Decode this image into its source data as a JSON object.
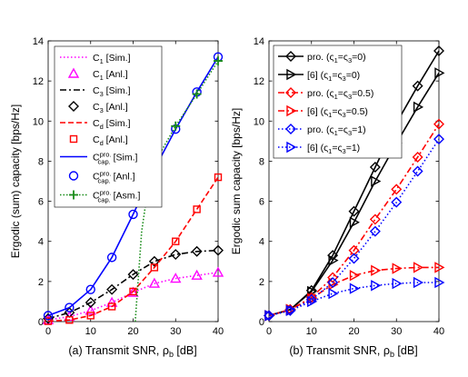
{
  "chart_data": [
    {
      "type": "line",
      "caption": "(a) Transmit SNR, ρ",
      "caption_sub": "b",
      "caption_unit": " [dB]",
      "ylabel": "Ergodic (sum) capacity [bps/Hz]",
      "xlim": [
        0,
        40
      ],
      "ylim": [
        0,
        14
      ],
      "xticks": [
        "0",
        "10",
        "20",
        "30",
        "40"
      ],
      "yticks": [
        "0",
        "2",
        "4",
        "6",
        "8",
        "10",
        "12",
        "14"
      ],
      "grid": false,
      "legend_position": "top-left",
      "series": [
        {
          "label": "C",
          "sub": "1",
          "sup": "",
          "tag": " [Sim.]",
          "color": "#ff00ff",
          "dash": "1.5,2.5",
          "marker": "none",
          "x": [
            0,
            5,
            10,
            15,
            20,
            25,
            30,
            35,
            40
          ],
          "y": [
            0.08,
            0.25,
            0.55,
            0.95,
            1.45,
            1.9,
            2.15,
            2.3,
            2.45
          ]
        },
        {
          "label": "C",
          "sub": "1",
          "sup": "",
          "tag": " [Anl.]",
          "color": "#ff00ff",
          "dash": "none",
          "marker": "triangle",
          "line": false,
          "x": [
            0,
            5,
            10,
            15,
            20,
            25,
            30,
            35,
            40
          ],
          "y": [
            0.08,
            0.25,
            0.55,
            0.95,
            1.45,
            1.9,
            2.15,
            2.3,
            2.45
          ]
        },
        {
          "label": "C",
          "sub": "3",
          "sup": "",
          "tag": " [Sim.]",
          "color": "#000000",
          "dash": "7,3,2,3",
          "marker": "none",
          "x": [
            0,
            5,
            10,
            15,
            20,
            25,
            30,
            35,
            40
          ],
          "y": [
            0.15,
            0.45,
            0.95,
            1.6,
            2.35,
            3.0,
            3.35,
            3.5,
            3.55
          ]
        },
        {
          "label": "C",
          "sub": "3",
          "sup": "",
          "tag": " [Anl.]",
          "color": "#000000",
          "dash": "none",
          "marker": "diamond",
          "line": false,
          "x": [
            0,
            5,
            10,
            15,
            20,
            25,
            30,
            35,
            40
          ],
          "y": [
            0.15,
            0.45,
            0.95,
            1.6,
            2.35,
            3.0,
            3.35,
            3.5,
            3.55
          ]
        },
        {
          "label": "C",
          "sub": "d",
          "sup": "",
          "tag": " [Sim.]",
          "color": "#ff0000",
          "dash": "6,3",
          "marker": "none",
          "x": [
            0,
            5,
            10,
            15,
            20,
            25,
            30,
            35,
            40
          ],
          "y": [
            0.02,
            0.08,
            0.3,
            0.75,
            1.5,
            2.7,
            4.0,
            5.6,
            7.2
          ]
        },
        {
          "label": "C",
          "sub": "d",
          "sup": "",
          "tag": " [Anl.]",
          "color": "#ff0000",
          "dash": "none",
          "marker": "square",
          "line": false,
          "x": [
            0,
            5,
            10,
            15,
            20,
            25,
            30,
            35,
            40
          ],
          "y": [
            0.02,
            0.08,
            0.3,
            0.75,
            1.5,
            2.7,
            4.0,
            5.6,
            7.2
          ]
        },
        {
          "label": "C",
          "sub": "cap.",
          "sup": "pro.",
          "tag": " [Sim.]",
          "color": "#0000ff",
          "dash": "none",
          "marker": "none",
          "x": [
            0,
            5,
            10,
            15,
            20,
            25,
            30,
            35,
            40
          ],
          "y": [
            0.3,
            0.7,
            1.6,
            3.2,
            5.35,
            7.6,
            9.6,
            11.45,
            13.2
          ]
        },
        {
          "label": "C",
          "sub": "cap.",
          "sup": "pro.",
          "tag": " [Anl.]",
          "color": "#0000ff",
          "dash": "none",
          "marker": "circle",
          "line": false,
          "x": [
            0,
            5,
            10,
            15,
            20,
            25,
            30,
            35,
            40
          ],
          "y": [
            0.3,
            0.7,
            1.6,
            3.2,
            5.35,
            7.6,
            9.6,
            11.45,
            13.2
          ]
        },
        {
          "label": "C",
          "sub": "cap.",
          "sup": "pro.",
          "tag": " [Asm.]",
          "color": "#1a8c1a",
          "dash": "1.5,2",
          "marker": "plus",
          "x": [
            20.5,
            22,
            24,
            25,
            30,
            35,
            40
          ],
          "y": [
            0,
            4.5,
            7.4,
            7.9,
            9.75,
            11.35,
            13.0
          ],
          "marker_x": [
            25,
            30,
            35,
            40
          ],
          "marker_y": [
            7.9,
            9.75,
            11.35,
            13.0
          ]
        }
      ]
    },
    {
      "type": "line",
      "caption": "(b) Transmit SNR, ρ",
      "caption_sub": "b",
      "caption_unit": " [dB]",
      "ylabel": "Ergodic sum capacity [bps/Hz]",
      "xlim": [
        0,
        40
      ],
      "ylim": [
        0,
        14
      ],
      "xticks": [
        "0",
        "10",
        "20",
        "30",
        "40"
      ],
      "yticks": [
        "0",
        "2",
        "4",
        "6",
        "8",
        "10",
        "12",
        "14"
      ],
      "grid": false,
      "legend_position": "top-left",
      "series": [
        {
          "prefix": "pro. (ς",
          "mid": "=ς",
          "suffix": "=0)",
          "s1": "1",
          "s3": "3",
          "color": "#000000",
          "dash": "none",
          "marker": "diamond",
          "x": [
            0,
            5,
            10,
            15,
            20,
            25,
            30,
            35,
            40
          ],
          "y": [
            0.3,
            0.6,
            1.55,
            3.3,
            5.5,
            7.7,
            9.9,
            11.75,
            13.5
          ]
        },
        {
          "prefix": "[6] (ς",
          "mid": "=ς",
          "suffix": "=0)",
          "s1": "1",
          "s3": "3",
          "color": "#000000",
          "dash": "none",
          "marker": "triangle-right",
          "x": [
            0,
            5,
            10,
            15,
            20,
            25,
            30,
            35,
            40
          ],
          "y": [
            0.3,
            0.6,
            1.5,
            3.05,
            4.95,
            7.0,
            8.9,
            10.7,
            12.4
          ]
        },
        {
          "prefix": "pro. (ς",
          "mid": "=ς",
          "suffix": "=0.5)",
          "s1": "1",
          "s3": "3",
          "color": "#ff0000",
          "dash": "7,3,2,3",
          "marker": "diamond",
          "x": [
            0,
            5,
            10,
            15,
            20,
            25,
            30,
            35,
            40
          ],
          "y": [
            0.3,
            0.6,
            1.2,
            2.2,
            3.55,
            5.1,
            6.6,
            8.2,
            9.85
          ]
        },
        {
          "prefix": "[6] (ς",
          "mid": "=ς",
          "suffix": "=0.5)",
          "s1": "1",
          "s3": "3",
          "color": "#ff0000",
          "dash": "7,3,2,3",
          "marker": "triangle-right",
          "x": [
            0,
            5,
            10,
            15,
            20,
            25,
            30,
            35,
            40
          ],
          "y": [
            0.3,
            0.6,
            1.15,
            1.85,
            2.3,
            2.55,
            2.65,
            2.7,
            2.7
          ]
        },
        {
          "prefix": "pro. (ς",
          "mid": "=ς",
          "suffix": "=1)",
          "s1": "1",
          "s3": "3",
          "color": "#0000ff",
          "dash": "1.5,2.5",
          "marker": "diamond",
          "x": [
            0,
            5,
            10,
            15,
            20,
            25,
            30,
            35,
            40
          ],
          "y": [
            0.3,
            0.55,
            1.1,
            1.95,
            3.15,
            4.5,
            5.95,
            7.5,
            9.1
          ]
        },
        {
          "prefix": "[6] (ς",
          "mid": "=ς",
          "suffix": "=1)",
          "s1": "1",
          "s3": "3",
          "color": "#0000ff",
          "dash": "1.5,2.5",
          "marker": "triangle-right",
          "x": [
            0,
            5,
            10,
            15,
            20,
            25,
            30,
            35,
            40
          ],
          "y": [
            0.3,
            0.55,
            1.0,
            1.4,
            1.65,
            1.8,
            1.9,
            1.95,
            1.95
          ]
        }
      ]
    }
  ]
}
